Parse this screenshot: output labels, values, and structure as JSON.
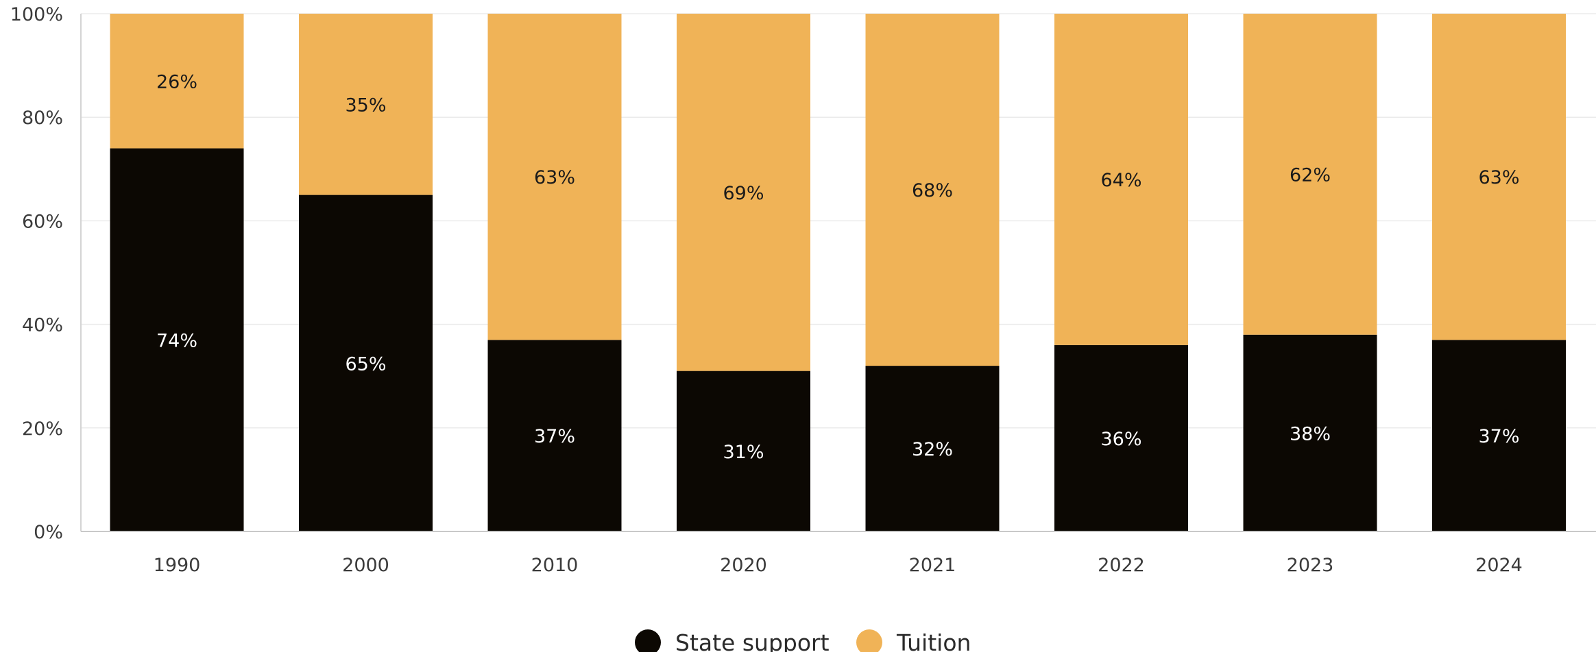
{
  "chart_data": {
    "type": "bar",
    "stacked": true,
    "categories": [
      "1990",
      "2000",
      "2010",
      "2020",
      "2021",
      "2022",
      "2023",
      "2024"
    ],
    "series": [
      {
        "name": "State support",
        "color": "#0c0803",
        "label_color": "#ffffff",
        "values": [
          74,
          65,
          37,
          31,
          32,
          36,
          38,
          37
        ],
        "labels": [
          "74%",
          "65%",
          "37%",
          "31%",
          "32%",
          "36%",
          "38%",
          "37%"
        ]
      },
      {
        "name": "Tuition",
        "color": "#f0b357",
        "label_color": "#1a1a1a",
        "values": [
          26,
          35,
          63,
          69,
          68,
          64,
          62,
          63
        ],
        "labels": [
          "26%",
          "35%",
          "63%",
          "69%",
          "68%",
          "64%",
          "62%",
          "63%"
        ]
      }
    ],
    "ylim": [
      0,
      100
    ],
    "yticks": [
      0,
      20,
      40,
      60,
      80,
      100
    ],
    "ytick_labels": [
      "0%",
      "20%",
      "40%",
      "60%",
      "80%",
      "100%"
    ],
    "grid": true,
    "legend_position": "bottom-center",
    "title": "",
    "xlabel": "",
    "ylabel": ""
  }
}
